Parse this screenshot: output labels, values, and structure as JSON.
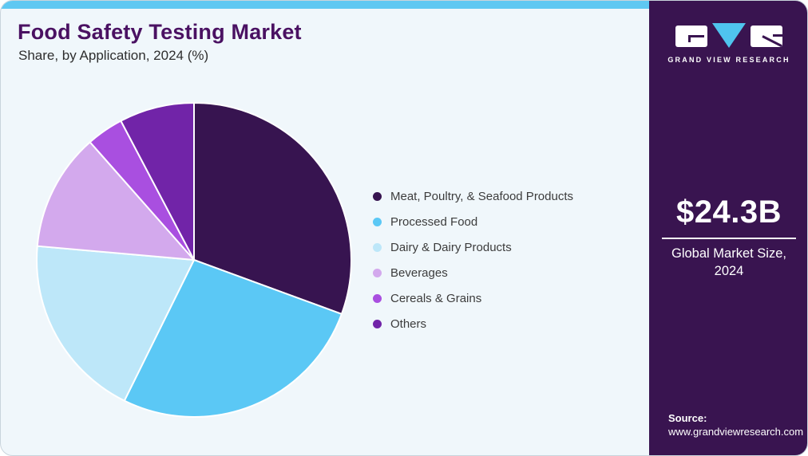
{
  "header": {
    "title": "Food Safety Testing Market",
    "subtitle": "Share, by Application, 2024 (%)"
  },
  "chart_data": {
    "type": "pie",
    "title": "Food Safety Testing Market Share, by Application, 2024 (%)",
    "unit": "%",
    "start_angle_deg": 0,
    "direction": "clockwise",
    "legend_position": "right",
    "slices": [
      {
        "label": "Meat, Poultry, & Seafood Products",
        "value": 30.6,
        "color": "#371450"
      },
      {
        "label": "Processed Food",
        "value": 26.7,
        "color": "#5bc8f5"
      },
      {
        "label": "Dairy & Dairy Products",
        "value": 19.1,
        "color": "#bde7f9"
      },
      {
        "label": "Beverages",
        "value": 12.1,
        "color": "#d3a9ed"
      },
      {
        "label": "Cereals & Grains",
        "value": 3.8,
        "color": "#a94fe0"
      },
      {
        "label": "Others",
        "value": 7.7,
        "color": "#7124a8"
      }
    ]
  },
  "sidebar": {
    "logo": {
      "brand": "Grand View Research",
      "wordmark": "GRAND VIEW RESEARCH"
    },
    "market_size": {
      "value": "$24.3B",
      "caption": "Global Market Size, 2024"
    },
    "source": {
      "label": "Source:",
      "url": "www.grandviewresearch.com"
    }
  },
  "colors": {
    "topbar": "#5fc8f2",
    "main_background": "#f0f7fb",
    "sidebar_background": "#391450",
    "title_text": "#4a1162",
    "legend_text": "#3c3c3c",
    "logo_triangle": "#4fc4ee"
  }
}
